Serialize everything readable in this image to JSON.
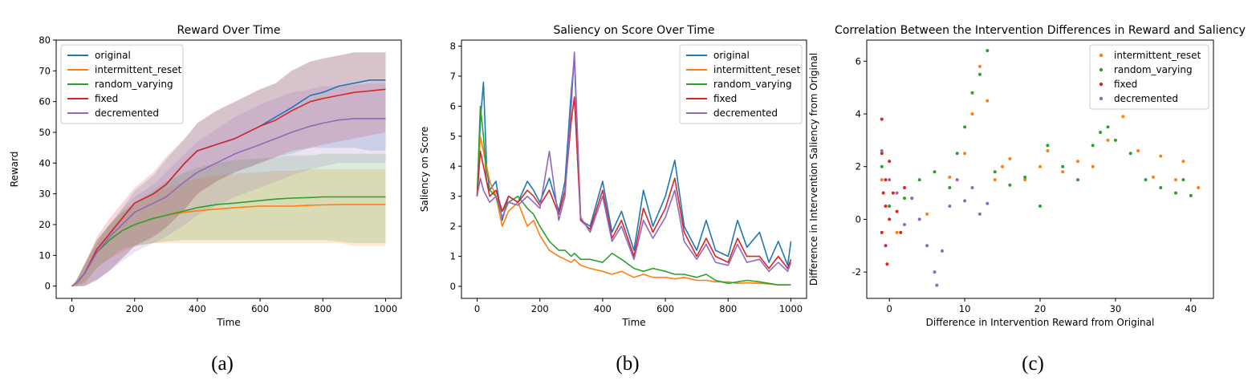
{
  "colors": {
    "original": "#1f77b4",
    "intermittent_reset": "#ff7f0e",
    "random_varying": "#2ca02c",
    "fixed": "#d62728",
    "decremented": "#9467bd"
  },
  "captions": [
    "(a)",
    "(b)",
    "(c)"
  ],
  "chart_data": [
    {
      "id": "a",
      "type": "line",
      "title": "Reward Over Time",
      "xlabel": "Time",
      "ylabel": "Reward",
      "xlim": [
        -50,
        1050
      ],
      "ylim": [
        -4,
        80
      ],
      "xticks": [
        0,
        200,
        400,
        600,
        800,
        1000
      ],
      "yticks": [
        0,
        10,
        20,
        30,
        40,
        50,
        60,
        70,
        80
      ],
      "legend": "top-left",
      "grid": false,
      "x": [
        0,
        15,
        40,
        80,
        120,
        160,
        200,
        260,
        300,
        360,
        400,
        460,
        520,
        600,
        650,
        700,
        760,
        800,
        850,
        900,
        950,
        1000
      ],
      "series": [
        {
          "name": "original",
          "color_key": "original",
          "values": [
            0,
            1,
            4,
            12,
            17,
            22,
            27,
            30,
            33,
            40,
            44,
            46,
            48,
            52,
            55,
            58,
            62,
            63,
            65,
            66,
            67,
            67
          ],
          "band": [
            [
              0,
              0,
              0,
              2,
              5,
              9,
              13,
              16,
              19,
              25,
              30,
              34,
              37,
              40,
              42,
              43,
              45,
              45,
              45,
              45,
              44,
              44
            ],
            [
              0,
              2,
              7,
              14,
              20,
              25,
              31,
              36,
              41,
              48,
              53,
              57,
              60,
              64,
              66,
              70,
              73,
              74,
              75,
              76,
              76,
              76
            ]
          ]
        },
        {
          "name": "intermittent_reset",
          "color_key": "intermittent_reset",
          "values": [
            0,
            1,
            4,
            11,
            15,
            18,
            20,
            22,
            23,
            24,
            24.5,
            25,
            25.5,
            26,
            26,
            26,
            26.3,
            26.4,
            26.5,
            26.5,
            26.5,
            26.5
          ],
          "band": [
            [
              0,
              0,
              1,
              6,
              9,
              11,
              13,
              14,
              14,
              14,
              14,
              14,
              14,
              14,
              14,
              14,
              14,
              14,
              14,
              13,
              13,
              13
            ],
            [
              0,
              2,
              7,
              15,
              20,
              24,
              27,
              30,
              32,
              34,
              35,
              36,
              36.5,
              37,
              37.5,
              37.5,
              38,
              38,
              38,
              38,
              38,
              38
            ]
          ]
        },
        {
          "name": "random_varying",
          "color_key": "random_varying",
          "values": [
            0,
            1,
            4,
            11,
            15,
            18,
            20,
            22,
            23,
            24.5,
            25.5,
            26.5,
            27,
            27.8,
            28.3,
            28.6,
            28.8,
            29,
            29,
            29,
            29,
            29
          ],
          "band": [
            [
              0,
              0,
              1,
              6,
              9,
              12,
              13,
              14,
              14.5,
              15,
              15,
              15,
              15,
              15,
              15,
              15,
              15,
              15,
              14.5,
              14,
              14,
              14
            ],
            [
              0,
              2,
              7,
              15,
              20,
              24,
              27,
              31,
              34,
              37,
              38.5,
              40,
              41,
              41.5,
              42,
              42.5,
              42.5,
              43,
              43,
              43,
              43,
              43
            ]
          ]
        },
        {
          "name": "fixed",
          "color_key": "fixed",
          "values": [
            0,
            1,
            4,
            12,
            17,
            22,
            27,
            30,
            33,
            40,
            44,
            46,
            48,
            52,
            54,
            57,
            60,
            61,
            62,
            63,
            63.5,
            64
          ],
          "band": [
            [
              0,
              0,
              0,
              2,
              5,
              9,
              13,
              16,
              19,
              25,
              30,
              34,
              37,
              40,
              42,
              44,
              45,
              46,
              47,
              48,
              49,
              50
            ],
            [
              0,
              2,
              7,
              16,
              22,
              27,
              32,
              37,
              42,
              48,
              53,
              57,
              60,
              64,
              66,
              70,
              73,
              74,
              75,
              76,
              76,
              76
            ]
          ]
        },
        {
          "name": "decremented",
          "color_key": "decremented",
          "values": [
            0,
            1,
            4,
            11,
            16,
            20,
            24,
            27,
            29,
            34,
            37,
            40,
            43,
            46,
            48,
            50,
            52,
            53,
            54,
            54.5,
            54.5,
            54.5
          ],
          "band": [
            [
              0,
              0,
              0,
              2,
              5,
              8,
              11,
              14,
              16,
              20,
              23,
              26,
              29,
              32,
              34,
              36,
              38,
              39,
              40,
              40,
              40,
              40
            ],
            [
              0,
              2,
              7,
              15,
              20,
              25,
              29,
              33,
              37,
              43,
              47,
              51,
              55,
              59,
              61,
              63,
              64,
              65,
              65,
              65.5,
              66,
              66
            ]
          ]
        }
      ]
    },
    {
      "id": "b",
      "type": "line",
      "title": "Saliency on Score Over Time",
      "xlabel": "Time",
      "ylabel": "Saliency on Score",
      "xlim": [
        -50,
        1050
      ],
      "ylim": [
        -0.4,
        8.2
      ],
      "xticks": [
        0,
        200,
        400,
        600,
        800,
        1000
      ],
      "yticks": [
        0,
        1,
        2,
        3,
        4,
        5,
        6,
        7,
        8
      ],
      "legend": "top-right",
      "grid": false,
      "x": [
        0,
        10,
        20,
        30,
        40,
        60,
        80,
        100,
        130,
        160,
        180,
        200,
        230,
        260,
        280,
        300,
        310,
        330,
        360,
        400,
        430,
        460,
        500,
        530,
        560,
        600,
        630,
        660,
        700,
        730,
        760,
        800,
        830,
        860,
        900,
        930,
        960,
        990,
        1000
      ],
      "series": [
        {
          "name": "original",
          "color_key": "original",
          "values": [
            3.0,
            5.5,
            6.8,
            4.0,
            3.2,
            3.5,
            2.2,
            3.0,
            2.8,
            3.5,
            3.2,
            2.8,
            3.6,
            2.5,
            3.5,
            6.5,
            7.6,
            2.2,
            2.0,
            3.5,
            1.8,
            2.5,
            1.2,
            3.2,
            2.0,
            3.0,
            4.2,
            2.0,
            1.2,
            2.2,
            1.2,
            1.0,
            2.2,
            1.3,
            1.8,
            0.8,
            1.5,
            0.7,
            1.5
          ]
        },
        {
          "name": "intermittent_reset",
          "color_key": "intermittent_reset",
          "values": [
            3.0,
            5.0,
            4.5,
            4.0,
            3.5,
            3.0,
            2.0,
            2.5,
            2.8,
            2.0,
            2.2,
            1.7,
            1.2,
            1.0,
            0.9,
            0.8,
            0.9,
            0.7,
            0.6,
            0.5,
            0.4,
            0.5,
            0.3,
            0.4,
            0.3,
            0.3,
            0.25,
            0.3,
            0.2,
            0.2,
            0.15,
            0.15,
            0.1,
            0.12,
            0.1,
            0.08,
            0.05,
            0.05,
            0.05
          ]
        },
        {
          "name": "random_varying",
          "color_key": "random_varying",
          "values": [
            3.0,
            6.0,
            5.0,
            3.5,
            3.2,
            3.0,
            2.5,
            2.8,
            3.0,
            2.6,
            2.4,
            2.0,
            1.5,
            1.2,
            1.2,
            1.0,
            1.1,
            0.9,
            0.9,
            0.8,
            1.1,
            0.9,
            0.6,
            0.5,
            0.6,
            0.5,
            0.4,
            0.4,
            0.3,
            0.4,
            0.2,
            0.1,
            0.15,
            0.2,
            0.15,
            0.1,
            0.05,
            0.05,
            0.05
          ]
        },
        {
          "name": "fixed",
          "color_key": "fixed",
          "values": [
            3.0,
            4.5,
            4.0,
            3.5,
            3.0,
            3.2,
            2.5,
            3.0,
            2.8,
            3.2,
            3.0,
            2.7,
            3.2,
            2.4,
            3.2,
            5.5,
            6.3,
            2.2,
            1.9,
            3.2,
            1.6,
            2.2,
            1.0,
            2.6,
            1.8,
            2.6,
            3.6,
            1.8,
            1.0,
            1.6,
            1.0,
            0.8,
            1.6,
            1.0,
            1.0,
            0.6,
            1.0,
            0.6,
            0.9
          ]
        },
        {
          "name": "decremented",
          "color_key": "decremented",
          "values": [
            3.0,
            3.6,
            3.2,
            3.0,
            2.8,
            3.0,
            2.3,
            2.8,
            2.7,
            3.0,
            2.8,
            2.6,
            4.5,
            2.2,
            3.0,
            6.0,
            7.8,
            2.3,
            1.8,
            3.0,
            1.5,
            2.0,
            0.9,
            2.2,
            1.6,
            2.3,
            3.2,
            1.5,
            0.9,
            1.4,
            0.8,
            0.7,
            1.4,
            0.8,
            0.9,
            0.5,
            0.8,
            0.5,
            0.8
          ]
        }
      ]
    },
    {
      "id": "c",
      "type": "scatter",
      "title": "Correlation Between the Intervention Differences in Reward and Saliency",
      "xlabel": "Difference in Intervention Reward from Original",
      "ylabel": "Difference in Intervention Saliency from Original",
      "xlim": [
        -3,
        43
      ],
      "ylim": [
        -3,
        6.8
      ],
      "xticks": [
        0,
        10,
        20,
        30,
        40
      ],
      "yticks": [
        -2,
        0,
        2,
        4,
        6
      ],
      "legend": "top-right",
      "grid": false,
      "clusters": [
        {
          "name": "intermittent_reset",
          "color_key": "intermittent_reset",
          "points": [
            [
              -1,
              1.5
            ],
            [
              0,
              0.5
            ],
            [
              1,
              -0.5
            ],
            [
              3,
              0.8
            ],
            [
              5,
              0.2
            ],
            [
              8,
              1.6
            ],
            [
              10,
              2.5
            ],
            [
              11,
              4.0
            ],
            [
              12,
              5.8
            ],
            [
              13,
              4.5
            ],
            [
              14,
              1.5
            ],
            [
              15,
              2.0
            ],
            [
              16,
              2.3
            ],
            [
              18,
              1.5
            ],
            [
              20,
              2.0
            ],
            [
              21,
              2.6
            ],
            [
              23,
              1.8
            ],
            [
              25,
              2.2
            ],
            [
              27,
              2.0
            ],
            [
              29,
              3.0
            ],
            [
              31,
              3.9
            ],
            [
              33,
              2.6
            ],
            [
              35,
              1.6
            ],
            [
              36,
              2.4
            ],
            [
              38,
              1.5
            ],
            [
              39,
              2.2
            ],
            [
              41,
              1.2
            ]
          ]
        },
        {
          "name": "random_varying",
          "color_key": "random_varying",
          "points": [
            [
              -1,
              2.0
            ],
            [
              0,
              0.5
            ],
            [
              2,
              0.8
            ],
            [
              4,
              1.5
            ],
            [
              6,
              1.8
            ],
            [
              8,
              1.2
            ],
            [
              9,
              2.5
            ],
            [
              10,
              3.5
            ],
            [
              11,
              4.8
            ],
            [
              12,
              5.5
            ],
            [
              13,
              6.4
            ],
            [
              14,
              1.8
            ],
            [
              16,
              1.3
            ],
            [
              18,
              1.6
            ],
            [
              20,
              0.5
            ],
            [
              21,
              2.8
            ],
            [
              23,
              2.0
            ],
            [
              25,
              1.5
            ],
            [
              27,
              2.8
            ],
            [
              28,
              3.3
            ],
            [
              29,
              3.5
            ],
            [
              30,
              3.0
            ],
            [
              32,
              2.5
            ],
            [
              34,
              1.5
            ],
            [
              36,
              1.2
            ],
            [
              38,
              1.0
            ],
            [
              39,
              1.5
            ],
            [
              40,
              0.9
            ]
          ]
        },
        {
          "name": "fixed",
          "color_key": "fixed",
          "points": [
            [
              -1,
              3.8
            ],
            [
              -1,
              2.5
            ],
            [
              -0.5,
              1.5
            ],
            [
              -0.5,
              0.5
            ],
            [
              0,
              0
            ],
            [
              -1,
              -0.5
            ],
            [
              -0.5,
              -1.0
            ],
            [
              -0.3,
              -1.7
            ],
            [
              0.5,
              1.0
            ],
            [
              1,
              0.3
            ],
            [
              1.5,
              -0.5
            ],
            [
              2,
              1.2
            ],
            [
              0,
              2.2
            ],
            [
              -0.8,
              1.0
            ]
          ]
        },
        {
          "name": "decremented",
          "color_key": "decremented",
          "points": [
            [
              -1,
              2.6
            ],
            [
              0,
              1.5
            ],
            [
              1,
              1.0
            ],
            [
              2,
              -0.2
            ],
            [
              3,
              0.8
            ],
            [
              4,
              0.0
            ],
            [
              5,
              -1.0
            ],
            [
              6,
              -2.0
            ],
            [
              6.3,
              -2.5
            ],
            [
              7,
              -1.2
            ],
            [
              8,
              0.5
            ],
            [
              9,
              1.5
            ],
            [
              10,
              0.7
            ],
            [
              11,
              1.2
            ],
            [
              12,
              0.2
            ],
            [
              13,
              0.6
            ]
          ]
        }
      ]
    }
  ]
}
